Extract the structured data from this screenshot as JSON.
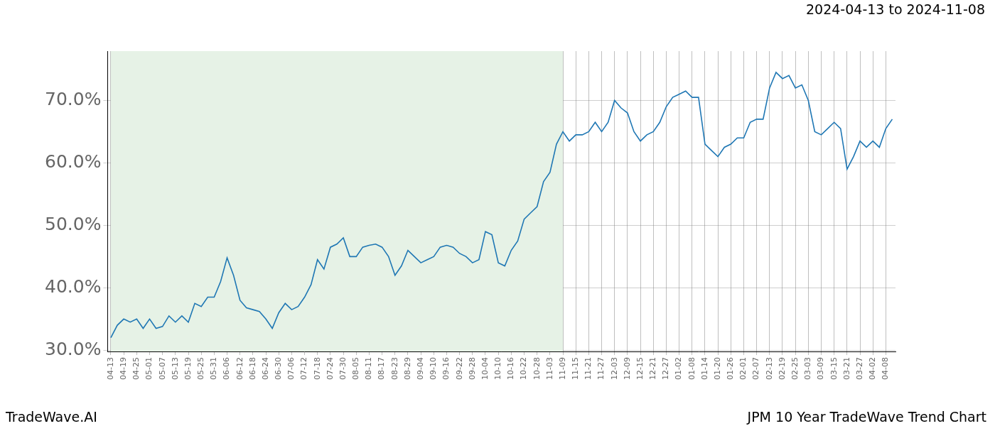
{
  "chart_data": {
    "type": "line",
    "title": "2024-04-13 to 2024-11-08",
    "source": "TradeWave.AI",
    "caption": "JPM 10 Year TradeWave Trend Chart",
    "categories": [
      "04-13",
      null,
      "04-19",
      null,
      "04-25",
      null,
      "05-01",
      null,
      "05-07",
      null,
      "05-13",
      null,
      "05-19",
      null,
      "05-25",
      null,
      "05-31",
      null,
      "06-06",
      null,
      "06-12",
      null,
      "06-18",
      null,
      "06-24",
      null,
      "06-30",
      null,
      "07-06",
      null,
      "07-12",
      null,
      "07-18",
      null,
      "07-24",
      null,
      "07-30",
      null,
      "08-05",
      null,
      "08-11",
      null,
      "08-17",
      null,
      "08-23",
      null,
      "08-29",
      null,
      "09-04",
      null,
      "09-10",
      null,
      "09-16",
      null,
      "09-22",
      null,
      "09-28",
      null,
      "10-04",
      null,
      "10-10",
      null,
      "10-16",
      null,
      "10-22",
      null,
      "10-28",
      null,
      "11-03",
      null,
      "11-09",
      null,
      "11-15",
      null,
      "11-21",
      null,
      "11-27",
      null,
      "12-03",
      null,
      "12-09",
      null,
      "12-15",
      null,
      "12-21",
      null,
      "12-27",
      null,
      "01-02",
      null,
      "01-08",
      null,
      "01-14",
      null,
      "01-20",
      null,
      "01-26",
      null,
      "02-01",
      null,
      "02-07",
      null,
      "02-13",
      null,
      "02-19",
      null,
      "02-25",
      null,
      "03-03",
      null,
      "03-09",
      null,
      "03-15",
      null,
      "03-21",
      null,
      "03-27",
      null,
      "04-02",
      null,
      "04-08",
      null
    ],
    "values": [
      32,
      34,
      35,
      34.5,
      35,
      33.5,
      35,
      33.5,
      33.8,
      35.5,
      34.5,
      35.5,
      34.5,
      37.5,
      37,
      38.5,
      38.5,
      41,
      44.8,
      42,
      38,
      36.8,
      36.5,
      36.2,
      35,
      33.5,
      36,
      37.5,
      36.5,
      37,
      38.5,
      40.5,
      44.5,
      43,
      46.5,
      47,
      48,
      45,
      45,
      46.5,
      46.8,
      47,
      46.5,
      45,
      42,
      43.5,
      46,
      45,
      44,
      44.5,
      45,
      46.5,
      46.8,
      46.5,
      45.5,
      45,
      44,
      44.5,
      49,
      48.5,
      44,
      43.5,
      46,
      47.5,
      51,
      52,
      53,
      57,
      58.5,
      63,
      65,
      63.5,
      64.5,
      64.5,
      65,
      66.5,
      65,
      66.5,
      70,
      68.8,
      68,
      65,
      63.5,
      64.5,
      65,
      66.5,
      69,
      70.5,
      71,
      71.5,
      70.5,
      70.5,
      63,
      62,
      61,
      62.5,
      63,
      64,
      64,
      66.5,
      67,
      67,
      72,
      74.5,
      73.5,
      74,
      72,
      72.5,
      70,
      65,
      64.5,
      65.5,
      66.5,
      65.5,
      59,
      61,
      63.5,
      62.5,
      63.5,
      62.5,
      65.5,
      67
    ],
    "color": "#1f77b4",
    "highlight": {
      "from": "04-13",
      "to": "11-09",
      "color": "#e6f2e6"
    },
    "ylim": [
      29.8,
      77.9
    ],
    "yticks": [
      {
        "value": 30,
        "label": "30.0%"
      },
      {
        "value": 40,
        "label": "40.0%"
      },
      {
        "value": 50,
        "label": "50.0%"
      },
      {
        "value": 60,
        "label": "60.0%"
      },
      {
        "value": 70,
        "label": "70.0%"
      }
    ],
    "grid": true
  }
}
